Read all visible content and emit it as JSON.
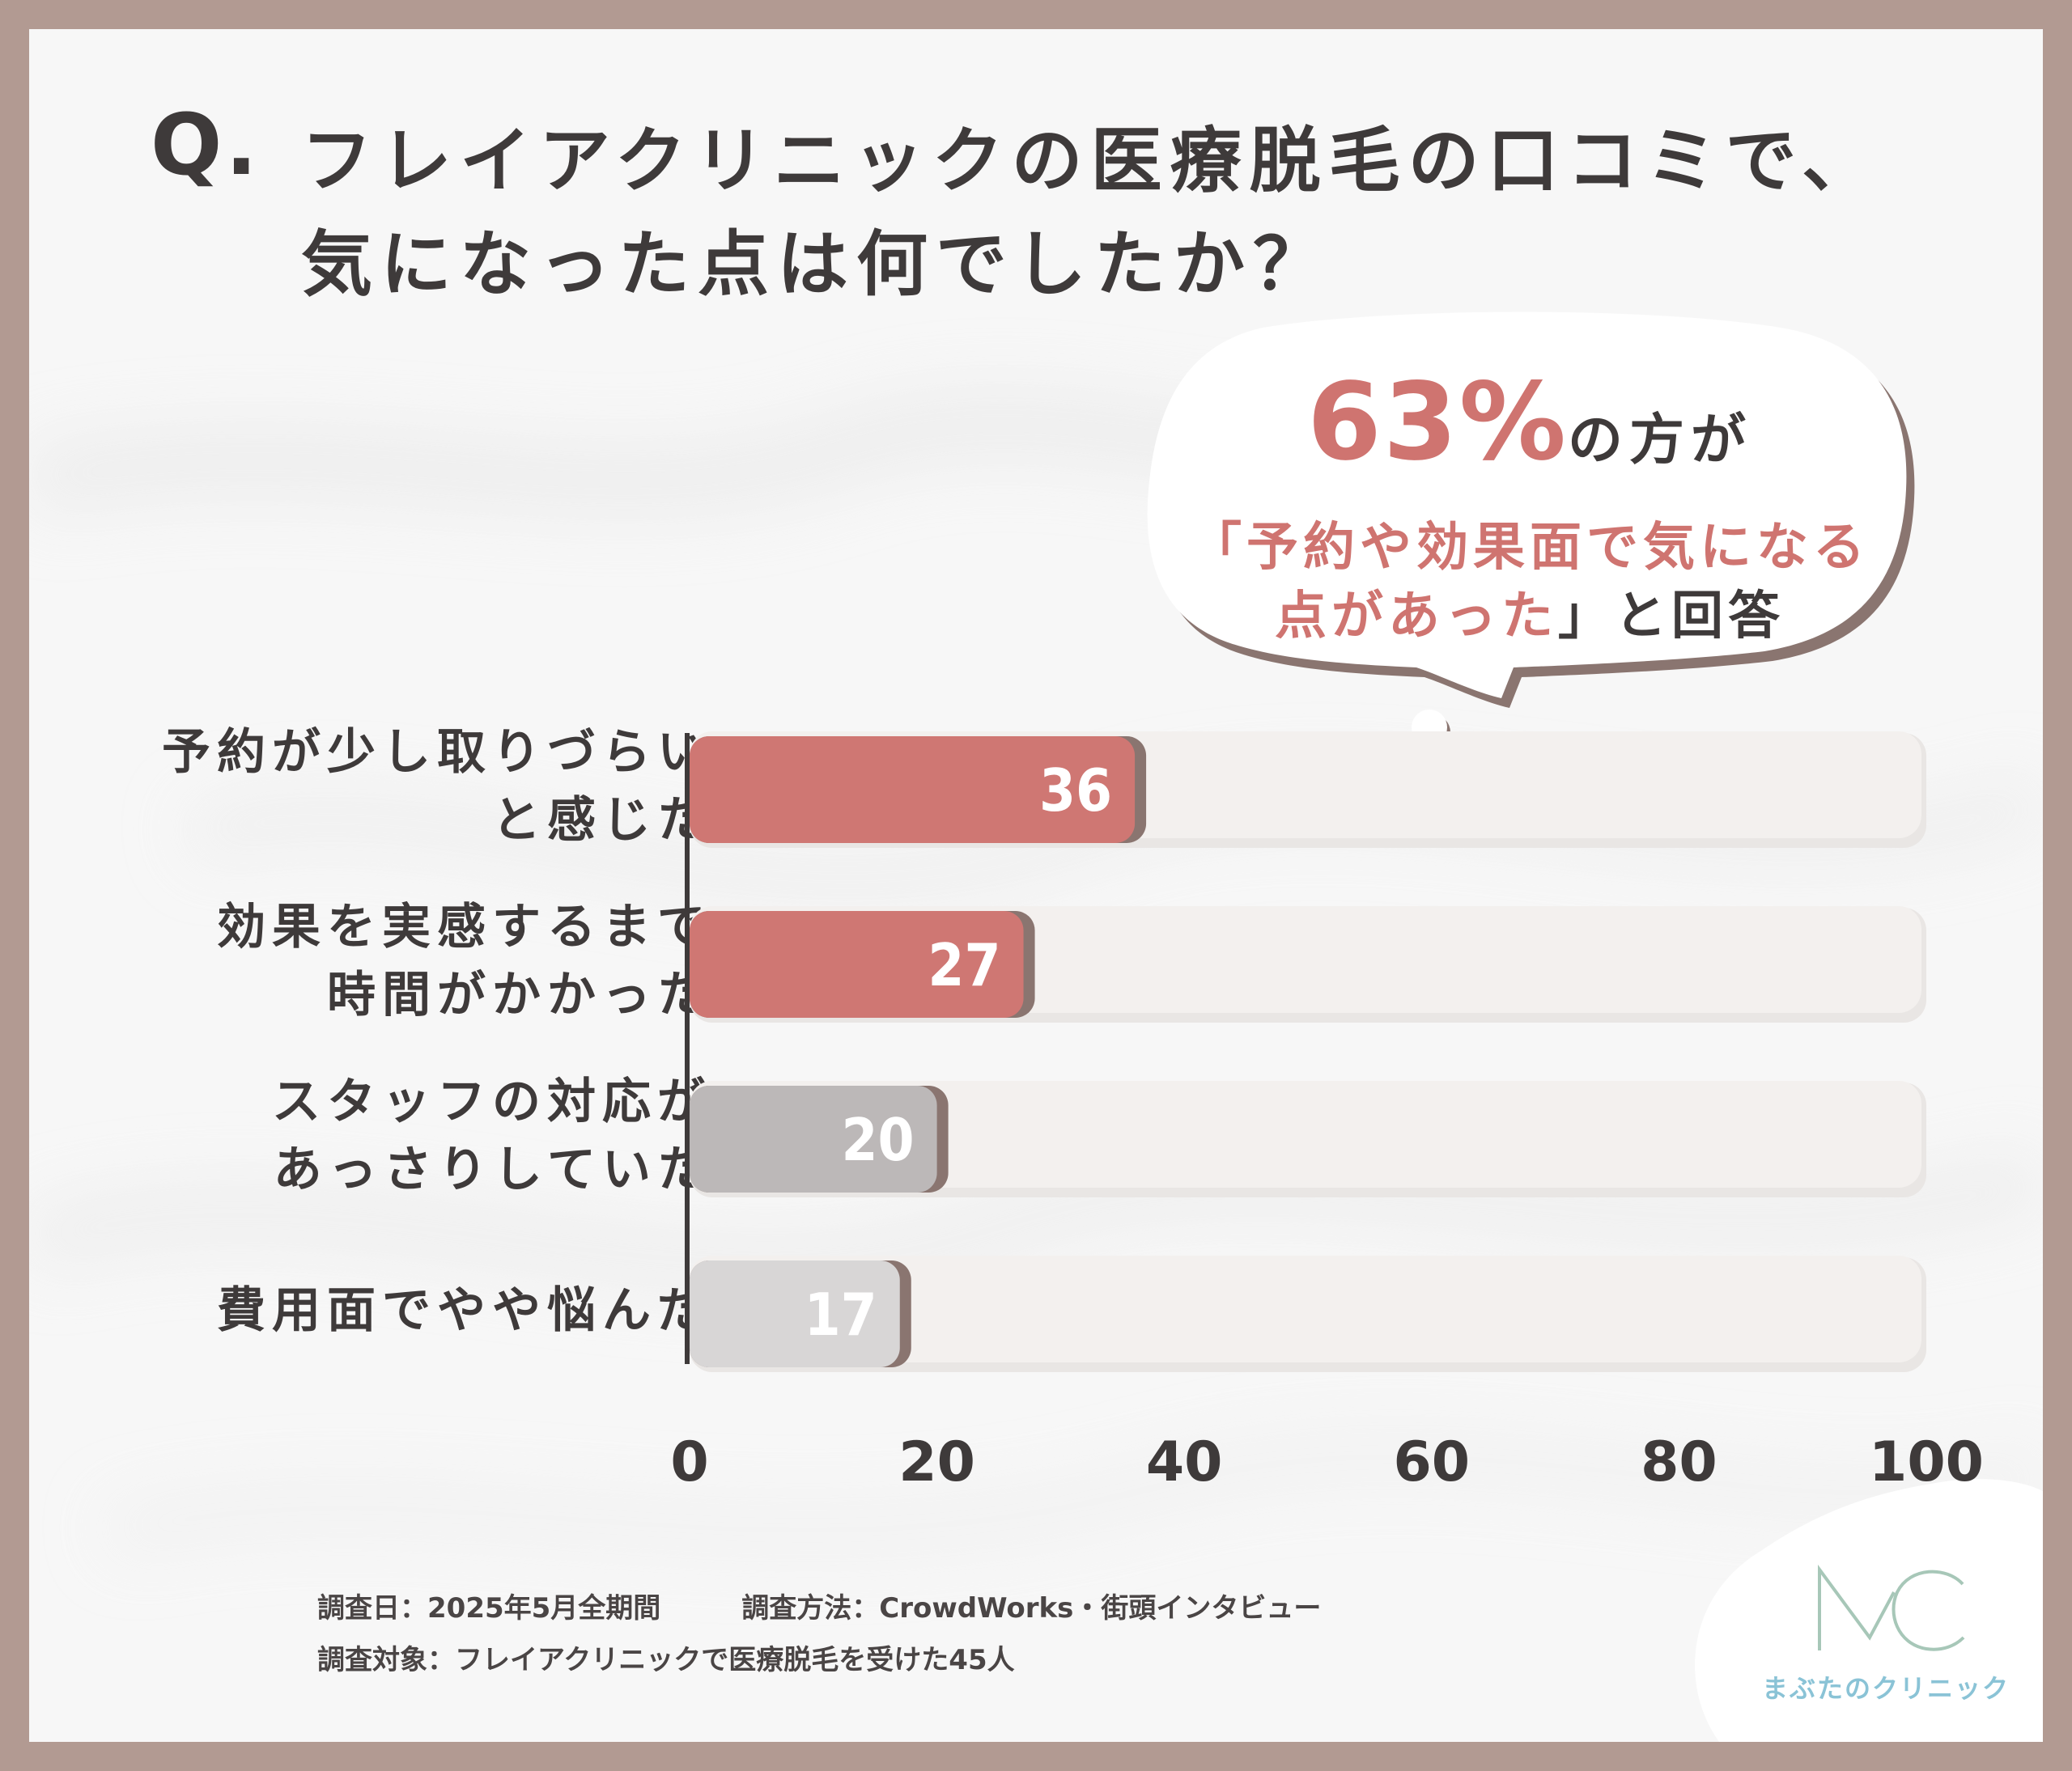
{
  "title": {
    "q_mark": "Q.",
    "line1": "フレイアクリニックの医療脱毛の口コミで、",
    "line2": "気になった点は何でしたか？"
  },
  "callout": {
    "percent": "63%",
    "percent_suffix": "の方が",
    "line2": "「予約や効果面で気になる",
    "line3_accent": "点があった",
    "line3_rest": "」と回答"
  },
  "chart_data": {
    "type": "bar",
    "orientation": "horizontal",
    "categories": [
      [
        "予約が少し取りづらい",
        "と感じた"
      ],
      [
        "効果を実感するまで",
        "時間がかかった"
      ],
      [
        "スタッフの対応が",
        "あっさりしていた"
      ],
      [
        "費用面でやや悩んだ"
      ]
    ],
    "values": [
      36,
      27,
      20,
      17
    ],
    "data_labels": [
      "36",
      "27",
      "20",
      "17"
    ],
    "bar_colors": [
      "#cf7773",
      "#cf7773",
      "#bcb8b8",
      "#d8d6d6"
    ],
    "track_color": "#f3f0ee",
    "xlim": [
      0,
      100
    ],
    "x_ticks": [
      "0",
      "20",
      "40",
      "60",
      "80",
      "100"
    ],
    "grid": false,
    "legend": "none"
  },
  "footer": {
    "survey_date": "調査日：2025年5月全期間",
    "survey_method": "調査方法：CrowdWorks・街頭インタビュー",
    "survey_target": "調査対象：フレイアクリニックで医療脱毛を受けた45人"
  },
  "logo": {
    "mark": "MC",
    "name": "まぶたのクリニック"
  },
  "colors": {
    "frame": "#b29a92",
    "accent": "#cf7470",
    "text": "#3e3a3a",
    "logo": "#8ac3d6"
  }
}
